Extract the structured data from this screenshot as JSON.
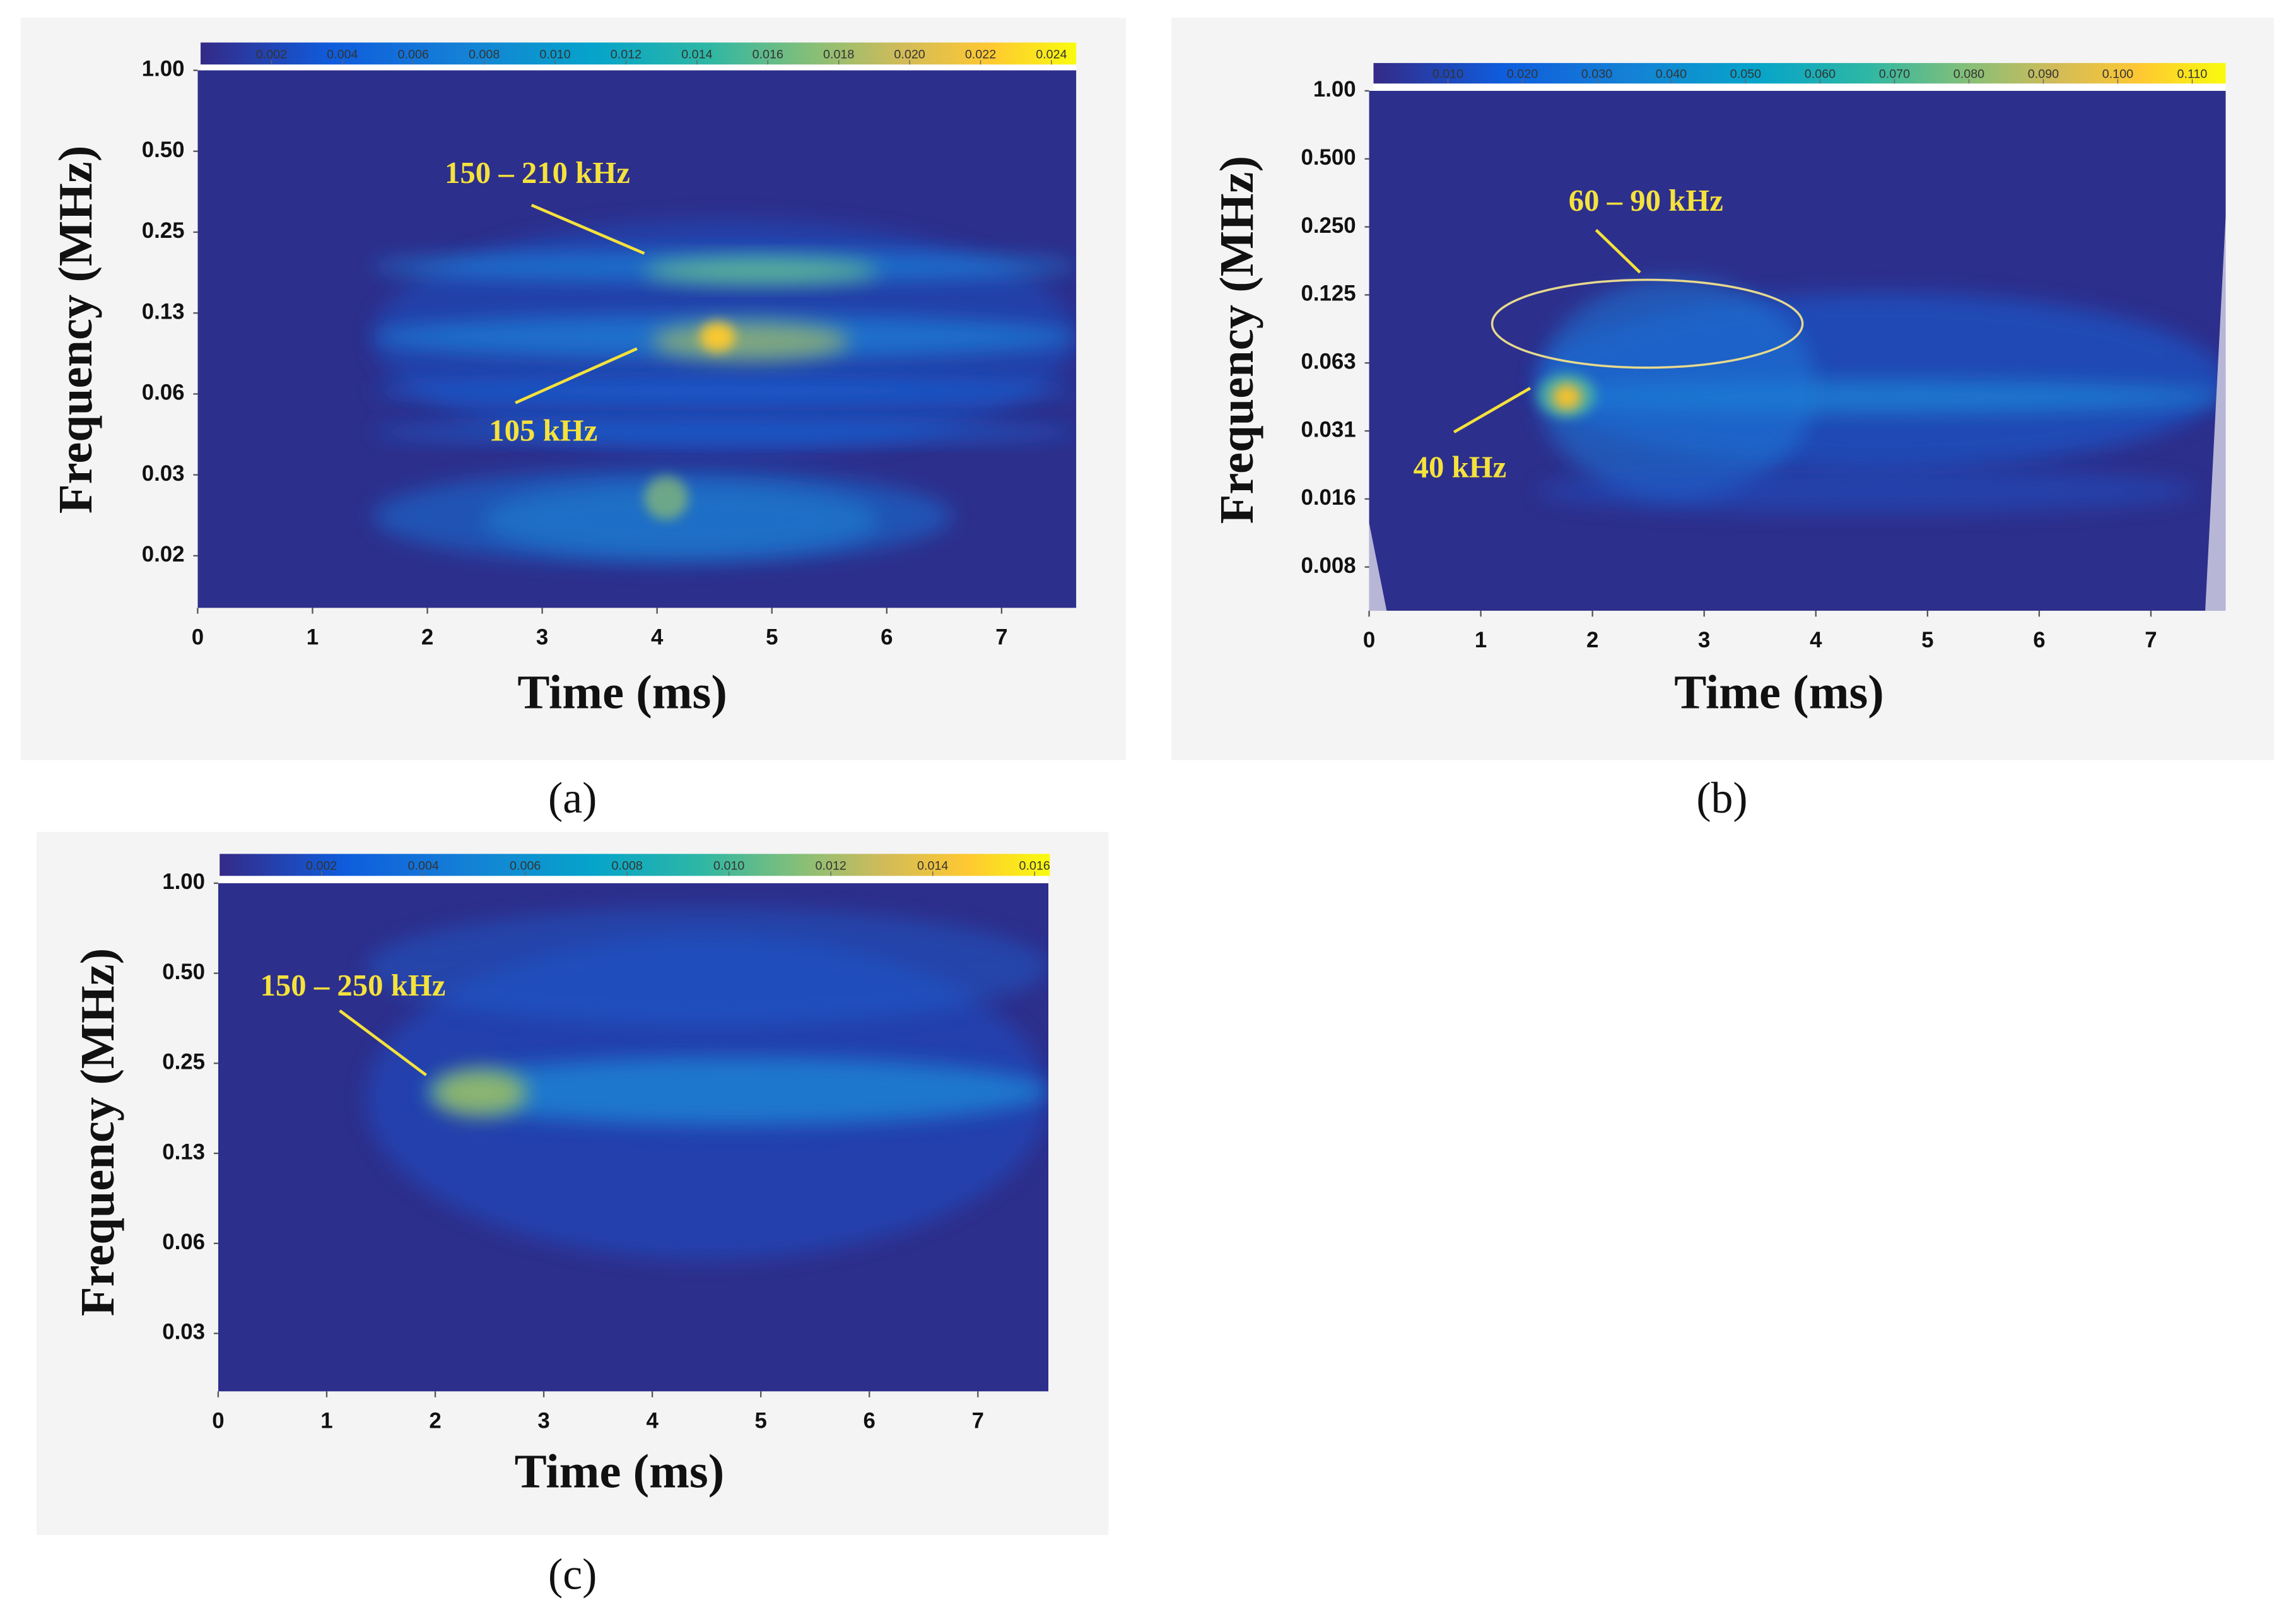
{
  "chart_data": [
    {
      "type": "spectrogram",
      "panel_label": "(a)",
      "xlabel": "Time (ms)",
      "ylabel": "Frequency (MHz)",
      "log_y": true,
      "xlim": [
        0,
        7.65
      ],
      "xticks": [
        0,
        1,
        2,
        3,
        4,
        5,
        6,
        7
      ],
      "ylim": [
        0.01,
        1
      ],
      "yticks": [
        {
          "value": 1,
          "label": "1.00"
        },
        {
          "value": 0.5,
          "label": "0.50"
        },
        {
          "value": 0.25,
          "label": "0.25"
        },
        {
          "value": 0.125,
          "label": "0.13"
        },
        {
          "value": 0.0625,
          "label": "0.06"
        },
        {
          "value": 0.03125,
          "label": "0.03"
        },
        {
          "value": 0.015625,
          "label": "0.02"
        }
      ],
      "colorbar": {
        "lim": [
          0,
          0.0247
        ],
        "ticks": [
          0.002,
          0.004,
          0.006,
          0.008,
          {
            "value": 0.01,
            "label": "0.010"
          },
          0.012,
          0.014,
          0.016,
          0.018,
          {
            "value": 0.02,
            "label": "0.020"
          },
          0.022,
          0.024
        ]
      },
      "annotations": [
        "150 – 210 kHz",
        "105 kHz"
      ]
    },
    {
      "type": "spectrogram",
      "panel_label": "(b)",
      "xlabel": "Time (ms)",
      "ylabel": "Frequency (MHz)",
      "log_y": true,
      "xlim": [
        0,
        7.67
      ],
      "xticks": [
        0,
        1,
        2,
        3,
        4,
        5,
        6,
        7
      ],
      "ylim": [
        0.005,
        1
      ],
      "yticks": [
        {
          "value": 1,
          "label": "1.00"
        },
        {
          "value": 0.5,
          "label": "0.500"
        },
        {
          "value": 0.25,
          "label": "0.250"
        },
        0.125,
        {
          "value": 0.0625,
          "label": "0.063"
        },
        {
          "value": 0.03125,
          "label": "0.031"
        },
        {
          "value": 0.015625,
          "label": "0.016"
        },
        {
          "value": 0.0078125,
          "label": "0.008"
        }
      ],
      "colorbar": {
        "lim": [
          0,
          0.1145
        ],
        "ticks": [
          {
            "value": 0.01,
            "label": "0.010"
          },
          {
            "value": 0.02,
            "label": "0.020"
          },
          {
            "value": 0.03,
            "label": "0.030"
          },
          {
            "value": 0.04,
            "label": "0.040"
          },
          {
            "value": 0.05,
            "label": "0.050"
          },
          {
            "value": 0.06,
            "label": "0.060"
          },
          {
            "value": 0.07,
            "label": "0.070"
          },
          {
            "value": 0.08,
            "label": "0.080"
          },
          {
            "value": 0.09,
            "label": "0.090"
          },
          {
            "value": 0.1,
            "label": "0.100"
          },
          {
            "value": 0.11,
            "label": "0.110"
          }
        ]
      },
      "annotations": [
        "60 – 90 kHz",
        "40 kHz"
      ]
    },
    {
      "type": "spectrogram",
      "panel_label": "(c)",
      "xlabel": "Time (ms)",
      "ylabel": "Frequency (MHz)",
      "log_y": true,
      "xlim": [
        0,
        7.65
      ],
      "xticks": [
        0,
        1,
        2,
        3,
        4,
        5,
        6,
        7
      ],
      "ylim": [
        0.02,
        1
      ],
      "yticks": [
        {
          "value": 1,
          "label": "1.00"
        },
        {
          "value": 0.5,
          "label": "0.50"
        },
        {
          "value": 0.25,
          "label": "0.25"
        },
        {
          "value": 0.125,
          "label": "0.13"
        },
        {
          "value": 0.0625,
          "label": "0.06"
        },
        {
          "value": 0.03125,
          "label": "0.03"
        }
      ],
      "colorbar": {
        "lim": [
          0,
          0.0163
        ],
        "ticks": [
          0.002,
          0.004,
          0.006,
          0.008,
          {
            "value": 0.01,
            "label": "0.010"
          },
          0.012,
          0.014,
          0.016
        ]
      },
      "annotations": [
        "150 – 250 kHz"
      ]
    }
  ]
}
